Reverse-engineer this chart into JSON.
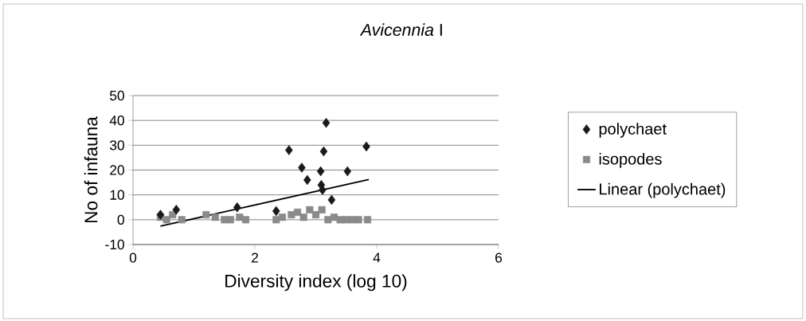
{
  "chart_data": {
    "type": "scatter",
    "title": "*Avicennia* I",
    "xlabel": "Diversity index (log 10)",
    "ylabel": "No of infauna",
    "xlim": [
      0,
      6
    ],
    "xticks": [
      0,
      2,
      4,
      6
    ],
    "ylim": [
      -10,
      50
    ],
    "yticks": [
      -10,
      0,
      10,
      20,
      30,
      40,
      50
    ],
    "grid": "y",
    "legend": "right",
    "series": [
      {
        "name": "polychaet",
        "marker": "diamond",
        "color": "#1a1a1a",
        "x": [
          0.45,
          0.71,
          1.71,
          2.35,
          2.56,
          2.77,
          2.86,
          3.17,
          3.13,
          3.08,
          3.09,
          3.11,
          3.26,
          3.52,
          3.83
        ],
        "values": [
          2,
          4,
          5,
          3.5,
          28,
          21,
          16,
          39,
          27.5,
          19.5,
          14,
          12,
          8,
          19.5,
          29.5
        ]
      },
      {
        "name": "isopodes",
        "marker": "square",
        "color": "#8a8a8a",
        "x": [
          0.45,
          0.55,
          0.65,
          0.8,
          1.2,
          1.35,
          1.5,
          1.6,
          1.75,
          1.85,
          2.35,
          2.45,
          2.6,
          2.7,
          2.8,
          2.9,
          3.0,
          3.1,
          3.2,
          3.3,
          3.4,
          3.5,
          3.6,
          3.7,
          3.85
        ],
        "values": [
          1,
          0,
          2,
          0,
          2,
          1,
          0,
          0,
          1,
          0,
          0,
          1,
          2,
          3,
          1,
          4,
          2,
          4,
          0,
          1,
          0,
          0,
          0,
          0,
          0
        ]
      },
      {
        "name": "Linear (polychaet)",
        "type": "line",
        "marker": "none",
        "line_style": "solid",
        "color": "#000000",
        "x": [
          0.45,
          3.87
        ],
        "values": [
          -2.6,
          16.2
        ]
      }
    ]
  }
}
